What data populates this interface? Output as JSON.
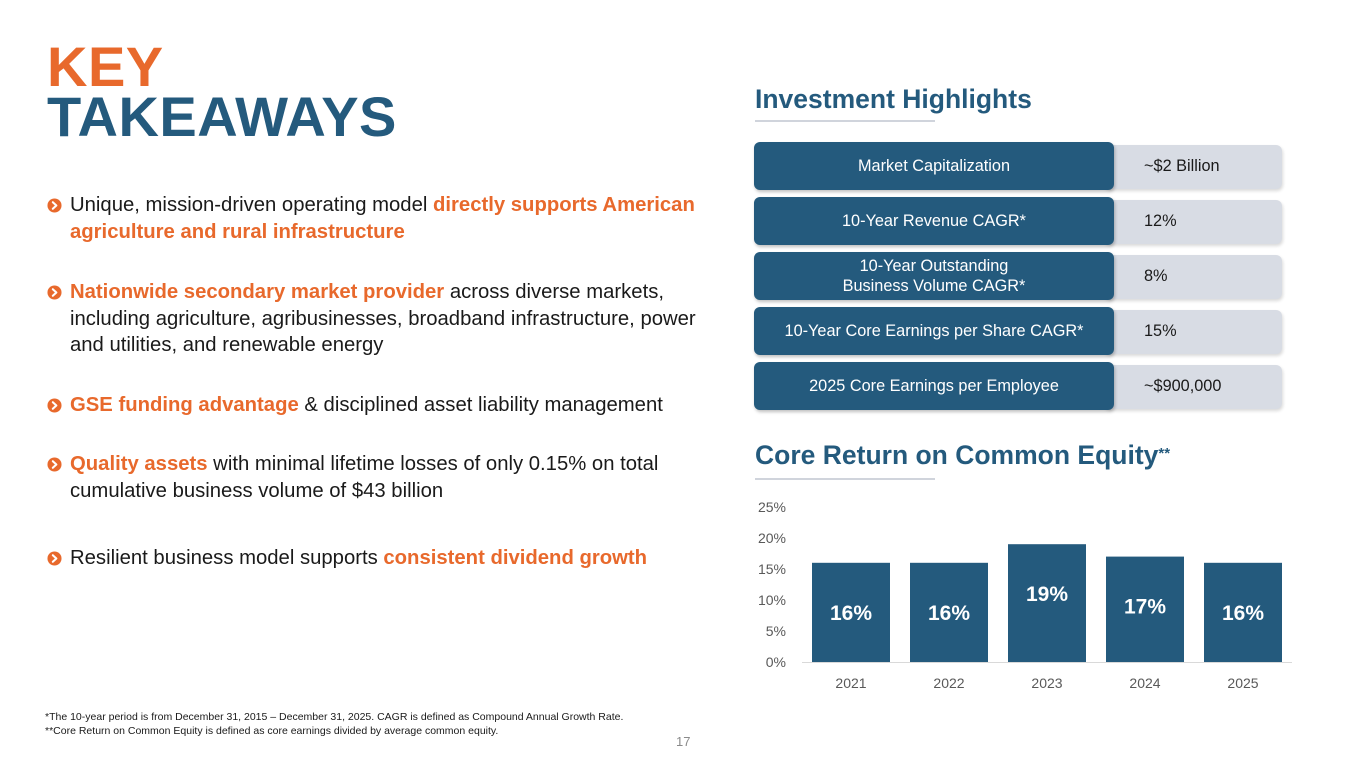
{
  "title": {
    "line1": "KEY",
    "line2": "TAKEAWAYS"
  },
  "colors": {
    "orange": "#e8692c",
    "navy": "#245a7d",
    "value_bg": "#d8dce4",
    "axis": "#d9d9d9",
    "tick_text": "#595959"
  },
  "bullets": [
    {
      "icon": "arrow-circle-icon",
      "parts": [
        {
          "text": "Unique, mission-driven operating model ",
          "hl": false
        },
        {
          "text": "directly supports American agriculture and rural infrastructure",
          "hl": true
        }
      ]
    },
    {
      "icon": "arrow-circle-icon",
      "parts": [
        {
          "text": "Nationwide secondary market provider",
          "hl": true
        },
        {
          "text": " across diverse markets, including agriculture, agribusinesses, broadband infrastructure, power and utilities, and renewable energy",
          "hl": false
        }
      ]
    },
    {
      "icon": "arrow-circle-icon",
      "parts": [
        {
          "text": "GSE funding advantage",
          "hl": true
        },
        {
          "text": " & disciplined asset liability management",
          "hl": false
        }
      ]
    },
    {
      "icon": "arrow-circle-icon",
      "parts": [
        {
          "text": "Quality assets",
          "hl": true
        },
        {
          "text": " with minimal lifetime losses of only 0.15% on total cumulative business volume of $43 billion",
          "hl": false
        }
      ]
    },
    {
      "icon": "arrow-circle-icon",
      "parts": [
        {
          "text": "Resilient business model supports ",
          "hl": false
        },
        {
          "text": "consistent dividend growth",
          "hl": true
        }
      ]
    }
  ],
  "investment": {
    "title": "Investment Highlights",
    "rows": [
      {
        "label": "Market Capitalization",
        "value": "~$2 Billion"
      },
      {
        "label": "10-Year Revenue CAGR*",
        "value": "12%"
      },
      {
        "label": "10-Year Outstanding\nBusiness Volume CAGR*",
        "value": "8%"
      },
      {
        "label": "10-Year Core Earnings per Share CAGR*",
        "value": "15%"
      },
      {
        "label": "2025 Core Earnings per Employee",
        "value": "~$900,000"
      }
    ]
  },
  "roe": {
    "title": "Core Return on Common Equity",
    "title_sup": "**"
  },
  "chart_data": {
    "type": "bar",
    "title": "Core Return on Common Equity**",
    "categories": [
      "2021",
      "2022",
      "2023",
      "2024",
      "2025"
    ],
    "values": [
      16,
      16,
      19,
      17,
      16
    ],
    "data_labels": [
      "16%",
      "16%",
      "19%",
      "17%",
      "16%"
    ],
    "ylim": [
      0,
      25
    ],
    "yticks": [
      0,
      5,
      10,
      15,
      20,
      25
    ],
    "ytick_labels": [
      "0%",
      "5%",
      "10%",
      "15%",
      "20%",
      "25%"
    ],
    "xlabel": "",
    "ylabel": "",
    "grid": false,
    "legend": "none"
  },
  "footnotes": {
    "line1": "*The 10-year period is from December 31, 2015 – December 31, 2025. CAGR is defined as Compound Annual Growth Rate.",
    "line2": "**Core Return on Common Equity is defined as core earnings divided by average common equity."
  },
  "page_number": "17"
}
